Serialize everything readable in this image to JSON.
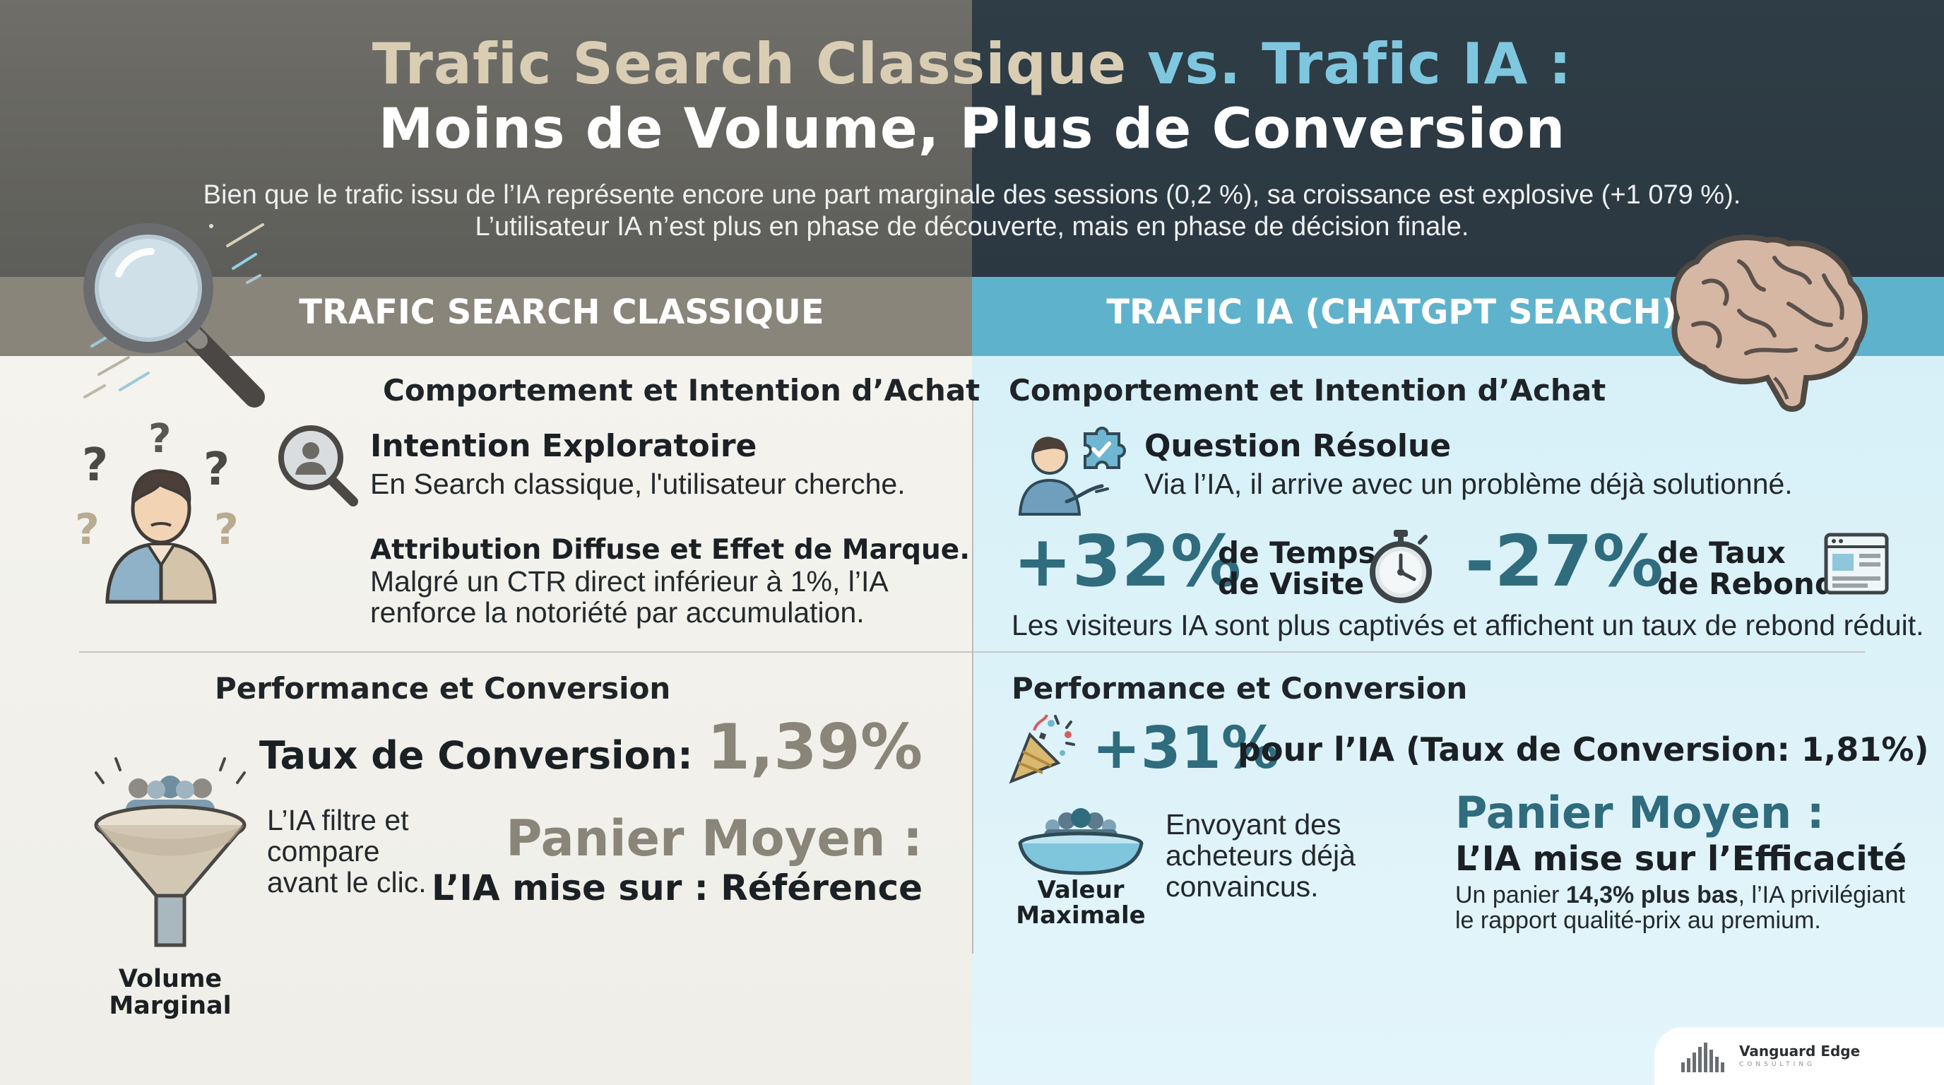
{
  "header": {
    "title_left": "Trafic Search Classique",
    "title_right": "vs. Trafic IA :",
    "title_line2": "Moins de Volume, Plus de Conversion",
    "subtitle_1": "Bien que le trafic issu de l’IA représente encore une part marginale des sessions (0,2 %), sa croissance est explosive (+1 079 %).",
    "subtitle_2": "L’utilisateur IA n’est plus en phase de découverte, mais en phase de décision finale."
  },
  "left": {
    "band_title": "TRAFIC SEARCH CLASSIQUE",
    "behavior": {
      "heading": "Comportement et Intention d’Achat",
      "item1_title": "Intention Exploratoire",
      "item1_text": "En Search classique, l'utilisateur cherche.",
      "item2_title": "Attribution Diffuse et Effet de Marque.",
      "item2_text_1": "Malgré un CTR direct inférieur à 1%, l’IA",
      "item2_text_2": "renforce la notoriété par accumulation."
    },
    "performance": {
      "heading": "Performance et Conversion",
      "conversion_label": "Taux de Conversion:",
      "conversion_value": "1,39%",
      "funnel_text_1": "L’IA filtre et",
      "funnel_text_2": "compare",
      "funnel_text_3": "avant le clic.",
      "funnel_label_1": "Volume",
      "funnel_label_2": "Marginal",
      "basket_title": "Panier Moyen :",
      "basket_sub": "L’IA mise sur : Référence"
    }
  },
  "right": {
    "band_title": "TRAFIC IA (CHATGPT SEARCH)",
    "behavior": {
      "heading": "Comportement et Intention d’Achat",
      "item1_title": "Question Résolue",
      "item1_text": "Via l’IA, il arrive avec un problème déjà solutionné.",
      "stat1_value": "+32%",
      "stat1_label_1": "de Temps",
      "stat1_label_2": "de Visite",
      "stat2_value": "-27%",
      "stat2_label_1": "de Taux",
      "stat2_label_2": "de Rebond",
      "stats_caption": "Les visiteurs IA sont plus captivés et affichent un taux de rebond réduit."
    },
    "performance": {
      "heading": "Performance et Conversion",
      "conv_value": "+31%",
      "conv_text": "pour l’IA (Taux de Conversion: 1,81%)",
      "bowl_label_1": "Valeur",
      "bowl_label_2": "Maximale",
      "bowl_text_1": "Envoyant des",
      "bowl_text_2": "acheteurs déjà",
      "bowl_text_3": "convaincus.",
      "basket_title": "Panier Moyen :",
      "basket_sub": "L’IA mise sur l’Efficacité",
      "basket_text_pre": "Un panier ",
      "basket_text_bold": "14,3% plus bas",
      "basket_text_post": ", l’IA privilégiant",
      "basket_text_2": "le rapport qualité-prix au premium."
    }
  },
  "logo": {
    "name": "Vanguard Edge",
    "tagline": "CONSULTING"
  },
  "icons": {
    "magnifier": "magnifier-icon",
    "brain": "brain-icon",
    "confused_person": "confused-person-icon",
    "user_search": "user-search-icon",
    "person_puzzle": "person-puzzle-icon",
    "stopwatch": "stopwatch-icon",
    "webpage": "webpage-icon",
    "party_popper": "party-popper-icon",
    "funnel": "funnel-icon",
    "bowl": "bowl-icon"
  },
  "colors": {
    "left_header": "#6f6e69",
    "right_header": "#2f3d46",
    "left_band": "#8a857b",
    "right_band": "#5fb2cc",
    "teal_accent": "#2f6c7d",
    "taupe_accent": "#8a8579"
  }
}
